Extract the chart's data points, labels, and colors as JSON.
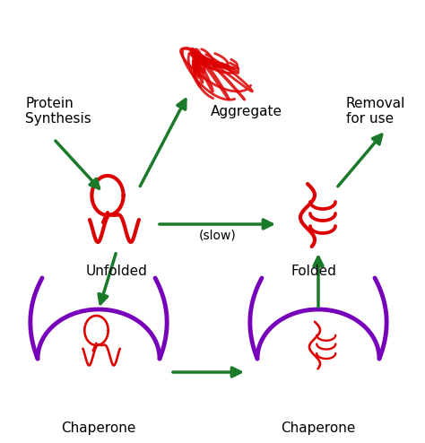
{
  "bg_color": "#ffffff",
  "arrow_color": "#1a7a2a",
  "protein_color": "#dd0000",
  "chaperone_color": "#7700bb",
  "text_color": "#000000",
  "labels": {
    "protein_synthesis": "Protein\nSynthesis",
    "aggregate": "Aggregate",
    "unfolded": "Unfolded",
    "folded": "Folded",
    "slow": "(slow)",
    "chaperone_left": "Chaperone",
    "chaperone_right": "Chaperone",
    "removal": "Removal\nfor use"
  },
  "font_size_label": 11,
  "font_size_note": 10
}
